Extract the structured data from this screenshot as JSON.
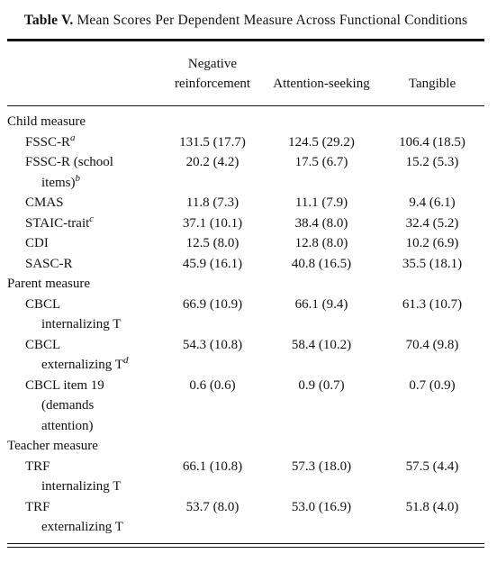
{
  "title": {
    "label": "Table V.",
    "text": "Mean Scores Per Dependent Measure Across Functional Conditions"
  },
  "table": {
    "columns": [
      [
        "Negative",
        "reinforcement"
      ],
      [
        "Attention-seeking"
      ],
      [
        "Tangible"
      ]
    ],
    "sections": [
      {
        "label": "Child measure",
        "rows": [
          {
            "label": [
              "FSSC-R"
            ],
            "note": "a",
            "cells": [
              "131.5 (17.7)",
              "124.5 (29.2)",
              "106.4 (18.5)"
            ]
          },
          {
            "label": [
              "FSSC-R (school",
              "items)"
            ],
            "note": "b",
            "cells": [
              "20.2 (4.2)",
              "17.5 (6.7)",
              "15.2 (5.3)"
            ]
          },
          {
            "label": [
              "CMAS"
            ],
            "cells": [
              "11.8 (7.3)",
              "11.1 (7.9)",
              "9.4 (6.1)"
            ]
          },
          {
            "label": [
              "STAIC-trait"
            ],
            "note": "c",
            "cells": [
              "37.1 (10.1)",
              "38.4 (8.0)",
              "32.4 (5.2)"
            ]
          },
          {
            "label": [
              "CDI"
            ],
            "cells": [
              "12.5 (8.0)",
              "12.8 (8.0)",
              "10.2 (6.9)"
            ]
          },
          {
            "label": [
              "SASC-R"
            ],
            "cells": [
              "45.9 (16.1)",
              "40.8 (16.5)",
              "35.5 (18.1)"
            ]
          }
        ]
      },
      {
        "label": "Parent measure",
        "rows": [
          {
            "label": [
              "CBCL",
              "internalizing T"
            ],
            "cells": [
              "66.9 (10.9)",
              "66.1 (9.4)",
              "61.3 (10.7)"
            ]
          },
          {
            "label": [
              "CBCL",
              "externalizing T"
            ],
            "note": "d",
            "cells": [
              "54.3 (10.8)",
              "58.4 (10.2)",
              "70.4 (9.8)"
            ]
          },
          {
            "label": [
              "CBCL item 19",
              "(demands",
              "attention)"
            ],
            "cells": [
              "0.6 (0.6)",
              "0.9 (0.7)",
              "0.7 (0.9)"
            ]
          }
        ]
      },
      {
        "label": "Teacher measure",
        "rows": [
          {
            "label": [
              "TRF",
              "internalizing T"
            ],
            "cells": [
              "66.1 (10.8)",
              "57.3 (18.0)",
              "57.5 (4.4)"
            ]
          },
          {
            "label": [
              "TRF",
              "externalizing T"
            ],
            "cells": [
              "53.7 (8.0)",
              "53.0 (16.9)",
              "51.8 (4.0)"
            ]
          }
        ]
      }
    ]
  }
}
